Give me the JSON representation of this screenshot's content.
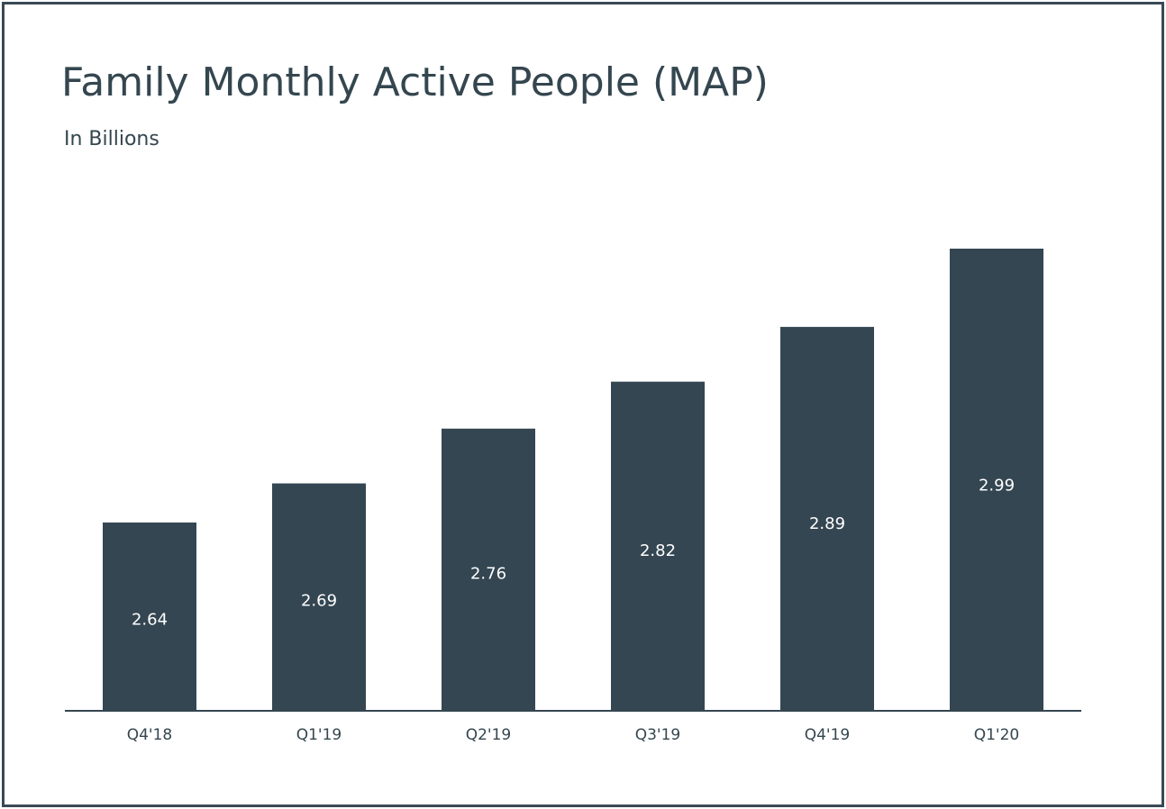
{
  "chart_data": {
    "type": "bar",
    "title": "Family Monthly Active People (MAP)",
    "subtitle": "In Billions",
    "categories": [
      "Q4'18",
      "Q1'19",
      "Q2'19",
      "Q3'19",
      "Q4'19",
      "Q1'20"
    ],
    "values": [
      2.64,
      2.69,
      2.76,
      2.82,
      2.89,
      2.99
    ],
    "value_labels": [
      "2.64",
      "2.69",
      "2.76",
      "2.82",
      "2.89",
      "2.99"
    ],
    "xlabel": "",
    "ylabel": "",
    "grid": false,
    "legend": "none",
    "colors": {
      "bar": "#344652",
      "axis": "#34464f",
      "text": "#34464f",
      "label": "#ffffff",
      "frame": "#3a4a55"
    }
  }
}
